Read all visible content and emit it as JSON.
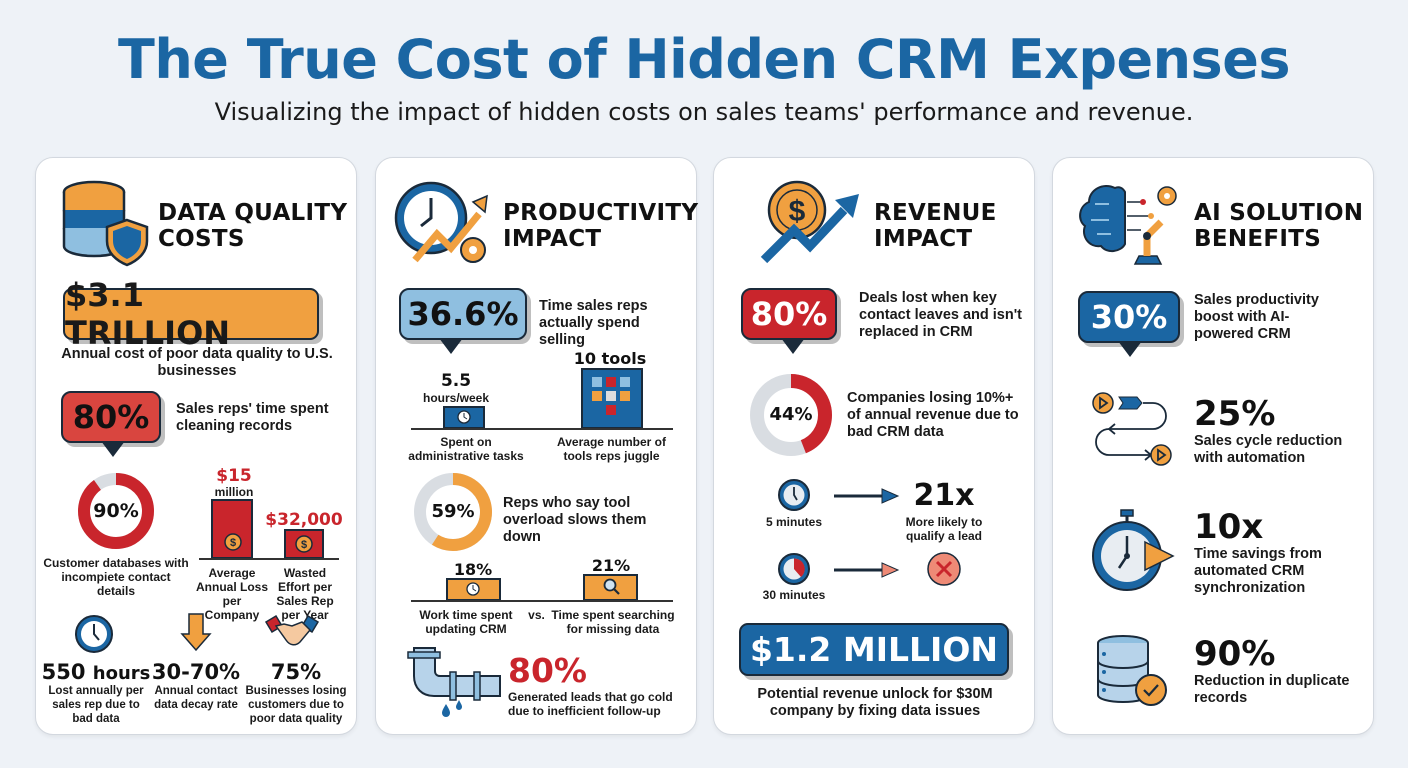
{
  "header": {
    "title": "The True Cost of Hidden CRM Expenses",
    "subtitle": "Visualizing the impact of hidden costs on sales teams' performance and revenue."
  },
  "colors": {
    "blue": "#1b66a3",
    "red": "#c9252c",
    "orange": "#f0a040",
    "light_blue": "#8fbfe0",
    "gray": "#d9dde2"
  },
  "data_quality": {
    "heading_1": "DATA QUALITY",
    "heading_2": "COSTS",
    "icon": "database-shield-icon",
    "headline_value": "$3.1 TRILLION",
    "headline_caption": "Annual cost of poor data quality to U.S. businesses",
    "bubble_value": "80%",
    "bubble_caption": "Sales reps' time spent cleaning records",
    "donut": {
      "value": "90%",
      "percent": 90,
      "caption": "Customer databases with incompiete contact details"
    },
    "bars": [
      {
        "value_1": "$15",
        "value_2": "million",
        "caption": "Average Annual Loss per Company"
      },
      {
        "value_1": "$32,000",
        "caption": "Wasted Effort per Sales Rep per Year"
      }
    ],
    "stats": [
      {
        "icon": "clock-icon",
        "value": "550",
        "unit": "hours",
        "caption": "Lost annually per sales rep due to bad data"
      },
      {
        "icon": "arrow-down-icon",
        "value": "30-70%",
        "caption": "Annual contact data decay rate"
      },
      {
        "icon": "handshake-icon",
        "value": "75%",
        "caption": "Businesses losing customers due to poor data quality"
      }
    ]
  },
  "productivity": {
    "heading_1": "PRODUCTIVITY",
    "heading_2": "IMPACT",
    "icon": "clock-arrow-gear-icon",
    "bubble_value": "36.6%",
    "bubble_caption": "Time sales reps actually spend selling",
    "admin": {
      "value": "5.5",
      "unit": "hours/week",
      "caption": "Spent on administrative tasks"
    },
    "tools": {
      "value": "10 tools",
      "caption": "Average number of tools reps juggle"
    },
    "donut": {
      "value": "59%",
      "percent": 59,
      "caption": "Reps who say tool overload slows them down"
    },
    "compare": {
      "left_value": "18%",
      "left_caption": "Work time spent updating CRM",
      "vs": "vs.",
      "right_value": "21%",
      "right_caption": "Time spent searching for missing data"
    },
    "leak": {
      "value": "80%",
      "caption": "Generated leads that go cold due to inefficient follow-up",
      "icon": "leaking-pipe-icon"
    }
  },
  "revenue": {
    "heading_1": "REVENUE",
    "heading_2": "IMPACT",
    "icon": "coin-rising-arrow-icon",
    "bubble_value": "80%",
    "bubble_caption": "Deals lost when key contact leaves and isn't replaced in CRM",
    "donut": {
      "value": "44%",
      "percent": 44,
      "caption": "Companies losing 10%+ of annual revenue due to bad CRM data"
    },
    "fast": {
      "time": "5 minutes",
      "value": "21x",
      "caption": "More likely to qualify a lead"
    },
    "slow": {
      "time": "30 minutes",
      "icon": "x-circle-icon"
    },
    "headline_value": "$1.2 MILLION",
    "headline_caption": "Potential revenue unlock for $30M company by fixing data issues"
  },
  "ai": {
    "heading_1": "AI SOLUTION",
    "heading_2": "BENEFITS",
    "icon": "brain-robot-arm-icon",
    "bubble_value": "30%",
    "bubble_caption": "Sales productivity boost with AI-powered CRM",
    "stats": [
      {
        "icon": "workflow-icon",
        "value": "25%",
        "caption": "Sales cycle reduction with automation"
      },
      {
        "icon": "stopwatch-icon",
        "value": "10x",
        "caption": "Time savings from automated CRM synchronization"
      },
      {
        "icon": "database-check-icon",
        "value": "90%",
        "caption": "Reduction in duplicate records"
      }
    ]
  }
}
